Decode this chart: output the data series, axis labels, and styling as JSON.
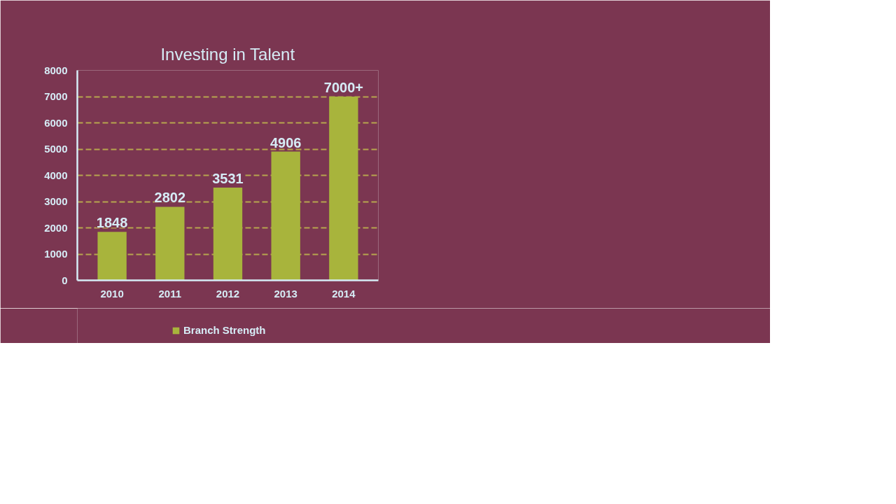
{
  "chart_data": {
    "type": "bar",
    "title": "Investing in Talent",
    "categories": [
      "2010",
      "2011",
      "2012",
      "2013",
      "2014"
    ],
    "series": [
      {
        "name": "Branch Strength",
        "color": "#a8b43c",
        "values": [
          1848,
          2802,
          3531,
          4906,
          7000
        ],
        "value_labels": [
          "1848",
          "2802",
          "3531",
          "4906",
          "7000+"
        ]
      }
    ],
    "ylim": [
      0,
      8000
    ],
    "yticks": [
      0,
      1000,
      2000,
      3000,
      4000,
      5000,
      6000,
      7000,
      8000
    ],
    "grid": "y",
    "legend": "bottom"
  }
}
